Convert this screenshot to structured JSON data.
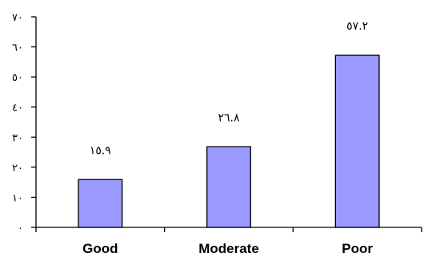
{
  "chart_data": {
    "type": "bar",
    "categories": [
      "Good",
      "Moderate",
      "Poor"
    ],
    "values": [
      15.9,
      26.8,
      57.2
    ],
    "data_labels": [
      "١٥.٩",
      "٢٦.٨",
      "٥٧.٢"
    ],
    "ylim": [
      0,
      70
    ],
    "yticks": [
      0,
      10,
      20,
      30,
      40,
      50,
      60,
      70
    ],
    "ytick_labels": [
      "٠",
      "١٠",
      "٢٠",
      "٣٠",
      "٤٠",
      "٥٠",
      "٦٠",
      "٧٠"
    ],
    "bar_color": "#9999ff",
    "bar_edge_color": "#000000",
    "grid": false,
    "legend": "none"
  }
}
